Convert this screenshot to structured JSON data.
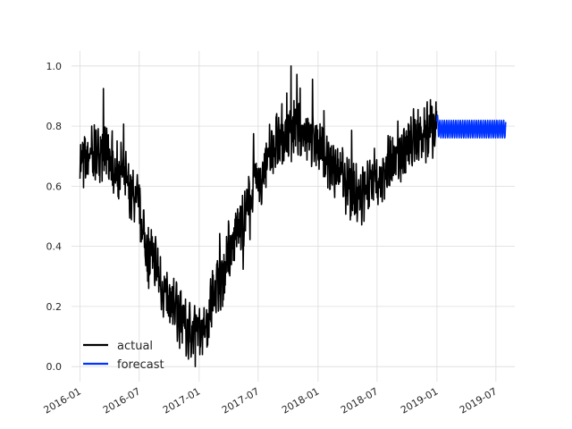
{
  "chart_data": {
    "type": "line",
    "title": "",
    "xlabel": "",
    "ylabel": "",
    "x_ticks": [
      "2016-01",
      "2016-07",
      "2017-01",
      "2017-07",
      "2018-01",
      "2018-07",
      "2019-01",
      "2019-07"
    ],
    "y_ticks": [
      "0.0",
      "0.2",
      "0.4",
      "0.6",
      "0.8",
      "1.0"
    ],
    "xlim": [
      "2015-12-06",
      "2019-08-28"
    ],
    "ylim": [
      -0.05,
      1.05
    ],
    "grid": true,
    "legend": {
      "position": "lower-left"
    },
    "series": [
      {
        "name": "actual",
        "color": "#000000",
        "start": "2016-01-01",
        "end": "2018-12-31",
        "frequency": "daily",
        "trend_points": [
          [
            "2016-01-01",
            0.68
          ],
          [
            "2016-03-15",
            0.72
          ],
          [
            "2016-05-01",
            0.66
          ],
          [
            "2016-06-15",
            0.56
          ],
          [
            "2016-08-01",
            0.38
          ],
          [
            "2016-10-01",
            0.22
          ],
          [
            "2016-12-01",
            0.12
          ],
          [
            "2017-01-15",
            0.14
          ],
          [
            "2017-03-01",
            0.28
          ],
          [
            "2017-05-01",
            0.46
          ],
          [
            "2017-07-01",
            0.62
          ],
          [
            "2017-09-01",
            0.75
          ],
          [
            "2017-11-01",
            0.8
          ],
          [
            "2018-01-01",
            0.74
          ],
          [
            "2018-03-01",
            0.64
          ],
          [
            "2018-05-01",
            0.57
          ],
          [
            "2018-07-01",
            0.62
          ],
          [
            "2018-09-01",
            0.7
          ],
          [
            "2018-11-01",
            0.77
          ],
          [
            "2018-12-31",
            0.8
          ]
        ],
        "noise_amplitude": 0.1,
        "max": 1.0,
        "min": 0.0
      },
      {
        "name": "forecast",
        "color": "#0033ff",
        "start": "2019-01-01",
        "end": "2019-07-31",
        "frequency": "daily",
        "level": 0.79,
        "weekly_amplitude": 0.03
      }
    ]
  }
}
